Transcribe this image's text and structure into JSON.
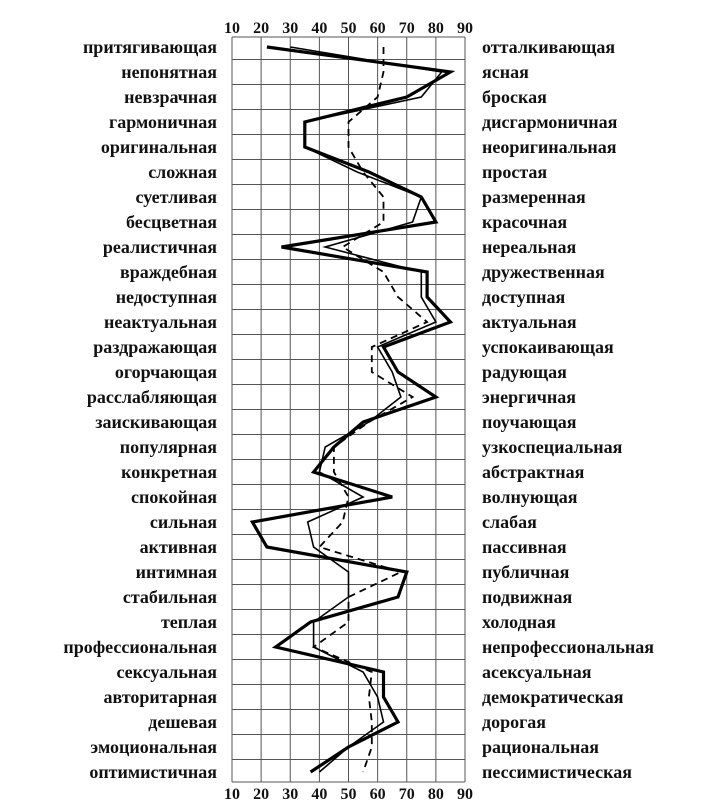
{
  "chart_data": {
    "type": "line",
    "title": "",
    "xlabel": "",
    "ylabel": "",
    "xlim": [
      10,
      90
    ],
    "x_ticks": [
      10,
      20,
      30,
      40,
      50,
      60,
      70,
      80,
      90
    ],
    "grid": true,
    "orientation": "horizontal-profile",
    "left_labels": [
      "притягивающая",
      "непонятная",
      "невзрачная",
      "гармоничная",
      "оригинальная",
      "сложная",
      "суетливая",
      "бесцветная",
      "реалистичная",
      "враждебная",
      "недоступная",
      "неактуальная",
      "раздражающая",
      "огорчающая",
      "расслабляющая",
      "заискивающая",
      "популярная",
      "конкретная",
      "спокойная",
      "сильная",
      "активная",
      "интимная",
      "стабильная",
      "теплая",
      "профессиональная",
      "сексуальная",
      "авторитарная",
      "дешевая",
      "эмоциональная",
      "оптимистичная"
    ],
    "right_labels": [
      "отталкивающая",
      "ясная",
      "броская",
      "дисгармоничная",
      "неоригинальная",
      "простая",
      "размеренная",
      "красочная",
      "нереальная",
      "дружественная",
      "доступная",
      "актуальная",
      "успокаивающая",
      "радующая",
      "энергичная",
      "поучающая",
      "узкоспециальная",
      "абстрактная",
      "волнующая",
      "слабая",
      "пассивная",
      "публичная",
      "подвижная",
      "холодная",
      "непрофессиональная",
      "асексуальная",
      "демократическая",
      "дорогая",
      "рациональная",
      "пессимистическая"
    ],
    "series": [
      {
        "style": "thick",
        "values": [
          22,
          85,
          70,
          35,
          35,
          57,
          75,
          80,
          27,
          77,
          77,
          85,
          62,
          67,
          80,
          55,
          45,
          38,
          65,
          17,
          22,
          70,
          67,
          37,
          25,
          62,
          62,
          67,
          50,
          37
        ]
      },
      {
        "style": "thin",
        "values": [
          30,
          82,
          75,
          35,
          35,
          53,
          75,
          72,
          42,
          75,
          75,
          80,
          60,
          65,
          68,
          57,
          42,
          40,
          55,
          36,
          38,
          50,
          50,
          38,
          38,
          55,
          60,
          62,
          50,
          40
        ]
      },
      {
        "style": "dashed",
        "values": [
          62,
          62,
          60,
          50,
          50,
          55,
          62,
          62,
          48,
          62,
          67,
          77,
          58,
          58,
          72,
          57,
          45,
          45,
          50,
          48,
          40,
          68,
          50,
          50,
          38,
          58,
          57,
          58,
          58,
          55
        ]
      }
    ]
  }
}
